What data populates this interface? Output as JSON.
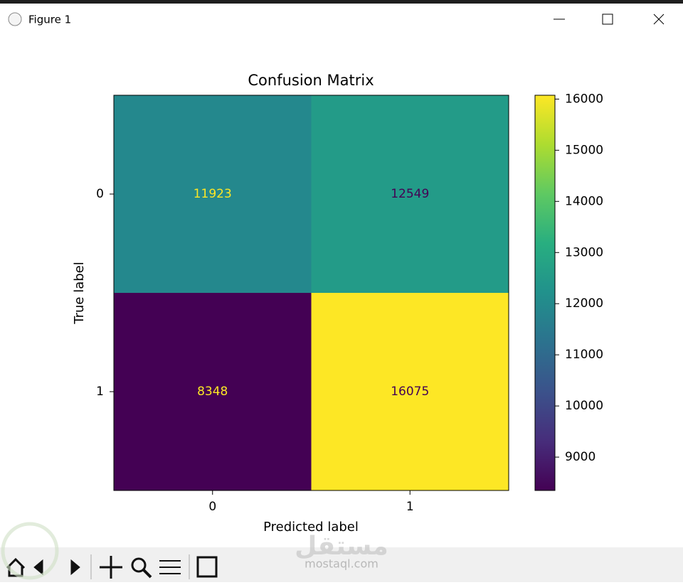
{
  "window": {
    "title": "Figure 1"
  },
  "chart_data": {
    "type": "heatmap",
    "title": "Confusion Matrix",
    "x_label": "Predicted label",
    "y_label": "True label",
    "x_categories": [
      "0",
      "1"
    ],
    "y_categories": [
      "0",
      "1"
    ],
    "values": [
      [
        11923,
        12549
      ],
      [
        8348,
        16075
      ]
    ],
    "clim": [
      8348,
      16075
    ],
    "colorbar_ticks": [
      9000,
      10000,
      11000,
      12000,
      13000,
      14000,
      15000,
      16000
    ],
    "colormap": [
      "#440154",
      "#472d7b",
      "#3b528b",
      "#2c728e",
      "#21918c",
      "#28ae80",
      "#5ec962",
      "#addc30",
      "#fde725"
    ],
    "text_colors": [
      "#fde725",
      "#440154"
    ]
  },
  "watermark": {
    "arabic": "مستقل",
    "site": "mostaql.com"
  }
}
